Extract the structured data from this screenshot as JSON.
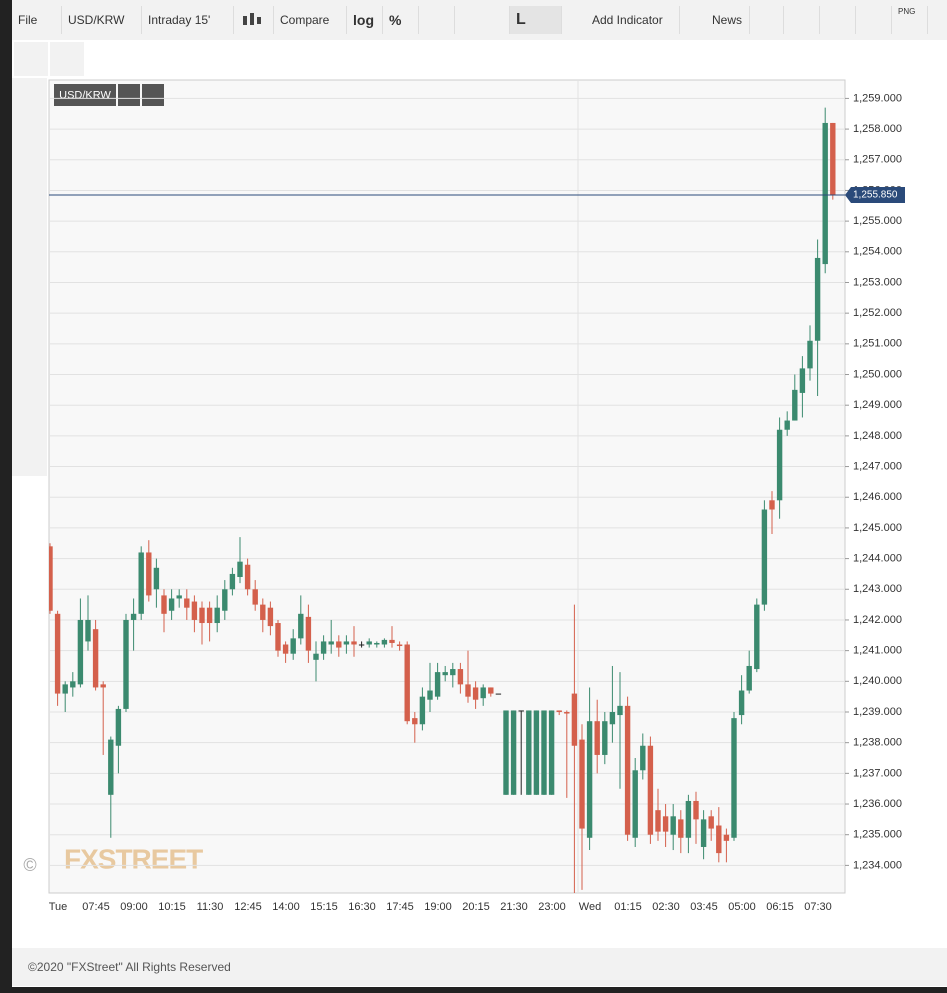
{
  "toolbar": {
    "file": "File",
    "symbol": "USD/KRW",
    "interval": "Intraday 15'",
    "compare": "Compare",
    "log": "log",
    "percent": "%",
    "line": "L",
    "indicator": "Add Indicator",
    "news": "News",
    "png": "PNG"
  },
  "chart_data": {
    "type": "candlestick",
    "symbol_label": "USD/KRW",
    "watermark": "FXSTREET",
    "copyright_mark": "©",
    "up_color": "#3b8a6f",
    "down_color": "#d4604c",
    "grid": true,
    "categories": [
      "Tue",
      null,
      null,
      null,
      null,
      "07:45",
      null,
      null,
      null,
      null,
      "09:00",
      null,
      null,
      null,
      null,
      "10:15",
      null,
      null,
      null,
      null,
      "11:30",
      null,
      null,
      null,
      null,
      "12:45",
      null,
      null,
      null,
      null,
      "14:00",
      null,
      null,
      null,
      null,
      "15:15",
      null,
      null,
      null,
      null,
      "16:30",
      null,
      null,
      null,
      null,
      "17:45",
      null,
      null,
      null,
      null,
      "19:00",
      null,
      null,
      null,
      null,
      "20:15",
      null,
      null,
      null,
      null,
      "21:30",
      null,
      null,
      null,
      null,
      "23:00",
      null,
      null,
      null,
      null,
      "Wed",
      null,
      null,
      null,
      null,
      "01:15",
      null,
      null,
      null,
      null,
      "02:30",
      null,
      null,
      null,
      null,
      "03:45",
      null,
      null,
      null,
      null,
      "05:00",
      null,
      null,
      null,
      null,
      "06:15",
      null,
      null,
      null,
      null,
      "07:30",
      null,
      null,
      null
    ],
    "open": [
      1244.4,
      1242.2,
      1239.6,
      1239.8,
      1239.9,
      1241.3,
      1241.7,
      1239.9,
      1236.3,
      1237.9,
      1239.1,
      1242.0,
      1242.2,
      1244.2,
      1243.0,
      1242.8,
      1242.3,
      1242.7,
      1242.7,
      1242.6,
      1242.4,
      1242.4,
      1241.9,
      1242.3,
      1243.0,
      1243.4,
      1243.8,
      1243.0,
      1242.5,
      1242.4,
      1241.9,
      1241.2,
      1240.9,
      1241.4,
      1242.1,
      1240.7,
      1240.9,
      1241.2,
      1241.3,
      1241.2,
      1241.3,
      1241.2,
      1241.2,
      1241.2,
      1241.2,
      1241.35,
      1241.2,
      1241.2,
      1238.8,
      1238.6,
      1239.4,
      1239.5,
      1240.2,
      1240.2,
      1240.4,
      1239.9,
      1239.8,
      1239.45,
      1239.8,
      1239.6,
      1236.3,
      1236.3,
      1239.05,
      1236.3,
      1236.3,
      1236.3,
      1236.3,
      1239.05,
      1239.0,
      1239.6,
      1238.1,
      1234.9,
      1238.7,
      1237.6,
      1238.6,
      1238.9,
      1239.2,
      1234.9,
      1237.1,
      1237.9,
      1235.8,
      1235.6,
      1235.0,
      1235.5,
      1234.9,
      1236.1,
      1234.6,
      1235.6,
      1235.3,
      1235.0,
      1234.9,
      1238.9,
      1239.7,
      1240.4,
      1242.5,
      1245.9,
      1245.9,
      1248.2,
      1248.5,
      1249.4,
      1250.2,
      1251.1,
      1253.6,
      1258.2
    ],
    "high": [
      1244.5,
      1242.3,
      1240.0,
      1240.3,
      1242.7,
      1242.8,
      1242.0,
      1240.0,
      1238.2,
      1239.2,
      1242.2,
      1242.7,
      1244.4,
      1244.6,
      1244.0,
      1243.0,
      1243.0,
      1243.0,
      1243.0,
      1242.8,
      1242.6,
      1242.6,
      1242.8,
      1243.3,
      1243.7,
      1244.7,
      1244.0,
      1243.3,
      1242.7,
      1242.6,
      1242.0,
      1241.3,
      1241.7,
      1242.8,
      1242.5,
      1241.3,
      1241.5,
      1242.0,
      1241.5,
      1241.5,
      1241.8,
      1241.3,
      1241.4,
      1241.3,
      1241.4,
      1241.8,
      1241.3,
      1241.3,
      1239.0,
      1239.8,
      1240.6,
      1240.6,
      1240.5,
      1240.6,
      1240.6,
      1241.0,
      1240.0,
      1239.9,
      1239.8,
      1239.6,
      1239.05,
      1239.05,
      1239.05,
      1239.05,
      1239.05,
      1239.05,
      1239.05,
      1239.05,
      1239.05,
      1242.5,
      1238.6,
      1239.8,
      1239.4,
      1239.0,
      1240.5,
      1240.3,
      1239.5,
      1237.5,
      1238.3,
      1238.2,
      1236.5,
      1236.0,
      1236.0,
      1235.8,
      1236.3,
      1236.4,
      1235.8,
      1235.8,
      1235.9,
      1235.2,
      1239.0,
      1240.2,
      1241.0,
      1242.7,
      1245.9,
      1246.2,
      1248.6,
      1248.8,
      1250.0,
      1250.6,
      1251.6,
      1254.4,
      1258.7,
      1258.2
    ],
    "low": [
      1242.2,
      1239.2,
      1239.0,
      1239.5,
      1239.8,
      1241.0,
      1239.7,
      1237.6,
      1234.9,
      1237.0,
      1239.0,
      1241.0,
      1242.0,
      1242.6,
      1242.4,
      1241.6,
      1242.0,
      1242.4,
      1242.0,
      1241.6,
      1241.2,
      1241.3,
      1241.6,
      1242.0,
      1242.8,
      1243.2,
      1242.8,
      1242.3,
      1241.6,
      1241.5,
      1240.8,
      1240.6,
      1240.7,
      1241.2,
      1240.6,
      1240.0,
      1240.7,
      1240.9,
      1240.8,
      1240.9,
      1240.8,
      1241.1,
      1241.1,
      1241.1,
      1241.1,
      1241.1,
      1241.0,
      1238.6,
      1238.0,
      1238.4,
      1239.0,
      1239.4,
      1240.0,
      1239.8,
      1239.6,
      1239.3,
      1239.1,
      1239.2,
      1239.5,
      1239.6,
      1236.3,
      1236.3,
      1236.3,
      1236.3,
      1236.3,
      1236.3,
      1236.3,
      1238.9,
      1236.2,
      1233.1,
      1233.2,
      1234.5,
      1237.0,
      1237.3,
      1238.0,
      1236.5,
      1234.8,
      1234.6,
      1236.8,
      1234.7,
      1234.8,
      1234.6,
      1234.5,
      1234.4,
      1234.4,
      1234.7,
      1234.2,
      1234.8,
      1234.1,
      1234.1,
      1234.8,
      1238.6,
      1239.6,
      1240.3,
      1242.3,
      1244.8,
      1245.3,
      1248.0,
      1248.5,
      1248.6,
      1249.8,
      1249.3,
      1253.3,
      1255.7
    ],
    "close": [
      1242.3,
      1239.6,
      1239.9,
      1240.0,
      1242.0,
      1242.0,
      1239.8,
      1239.8,
      1238.1,
      1239.1,
      1242.0,
      1242.2,
      1244.2,
      1242.8,
      1243.7,
      1242.2,
      1242.7,
      1242.8,
      1242.4,
      1242.0,
      1241.9,
      1241.9,
      1242.4,
      1243.0,
      1243.5,
      1243.9,
      1243.0,
      1242.5,
      1242.0,
      1241.8,
      1241.0,
      1240.9,
      1241.4,
      1242.2,
      1241.0,
      1240.9,
      1241.3,
      1241.3,
      1241.1,
      1241.3,
      1241.2,
      1241.2,
      1241.3,
      1241.25,
      1241.35,
      1241.25,
      1241.15,
      1238.7,
      1238.6,
      1239.5,
      1239.7,
      1240.3,
      1240.3,
      1240.4,
      1239.9,
      1239.5,
      1239.4,
      1239.8,
      1239.6,
      1239.6,
      1239.05,
      1239.05,
      1239.05,
      1239.05,
      1239.05,
      1239.05,
      1239.05,
      1239.0,
      1238.95,
      1237.9,
      1235.2,
      1238.7,
      1237.6,
      1238.7,
      1239.0,
      1239.2,
      1235.0,
      1237.1,
      1237.9,
      1235.0,
      1235.1,
      1235.1,
      1235.6,
      1234.9,
      1236.1,
      1235.5,
      1235.5,
      1235.2,
      1234.4,
      1234.8,
      1238.8,
      1239.7,
      1240.5,
      1242.5,
      1245.6,
      1245.6,
      1248.2,
      1248.5,
      1249.5,
      1250.2,
      1251.1,
      1253.8,
      1258.2,
      1255.85
    ],
    "ylim": [
      1233.1,
      1259.6
    ],
    "yticks": [
      {
        "value": 1234,
        "label": "1,234.000"
      },
      {
        "value": 1235,
        "label": "1,235.000"
      },
      {
        "value": 1236,
        "label": "1,236.000"
      },
      {
        "value": 1237,
        "label": "1,237.000"
      },
      {
        "value": 1238,
        "label": "1,238.000"
      },
      {
        "value": 1239,
        "label": "1,239.000"
      },
      {
        "value": 1240,
        "label": "1,240.000"
      },
      {
        "value": 1241,
        "label": "1,241.000"
      },
      {
        "value": 1242,
        "label": "1,242.000"
      },
      {
        "value": 1243,
        "label": "1,243.000"
      },
      {
        "value": 1244,
        "label": "1,244.000"
      },
      {
        "value": 1245,
        "label": "1,245.000"
      },
      {
        "value": 1246,
        "label": "1,246.000"
      },
      {
        "value": 1247,
        "label": "1,247.000"
      },
      {
        "value": 1248,
        "label": "1,248.000"
      },
      {
        "value": 1249,
        "label": "1,249.000"
      },
      {
        "value": 1250,
        "label": "1,250.000"
      },
      {
        "value": 1251,
        "label": "1,251.000"
      },
      {
        "value": 1252,
        "label": "1,252.000"
      },
      {
        "value": 1253,
        "label": "1,253.000"
      },
      {
        "value": 1254,
        "label": "1,254.000"
      },
      {
        "value": 1255,
        "label": "1,255.000"
      },
      {
        "value": 1256,
        "label": "1,256.000"
      },
      {
        "value": 1257,
        "label": "1,257.000"
      },
      {
        "value": 1258,
        "label": "1,258.000"
      },
      {
        "value": 1259,
        "label": "1,259.000"
      }
    ],
    "last_price": {
      "value": 1255.85,
      "label": "1,255.850"
    }
  },
  "footer": "©2020 \"FXStreet\" All Rights Reserved"
}
